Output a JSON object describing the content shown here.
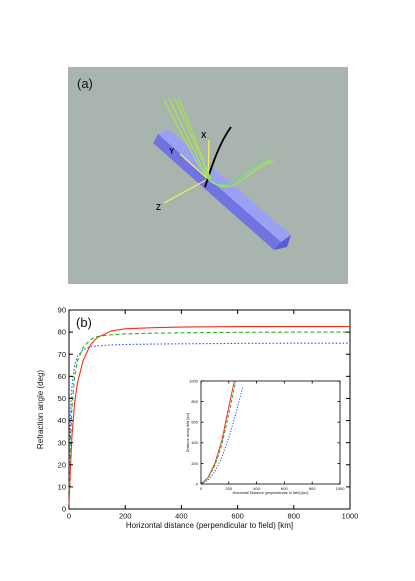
{
  "panel_a": {
    "label": "(a)",
    "axes": {
      "x": "X",
      "y": "Y",
      "z": "Z"
    },
    "colors": {
      "background": "#aab4ae",
      "bar": "#6f70e6",
      "rays": "#a8e84a",
      "ray_alt": "#6fd2a0",
      "field_line": "#000000",
      "axes": "#f4f45a"
    }
  },
  "panel_b": {
    "label": "(b)",
    "inset_label": ""
  },
  "chart_data": [
    {
      "type": "line",
      "xlabel": "Horizontal distance (perpendicular to field) [km]",
      "ylabel": "Refraction angle (deg)",
      "xlim": [
        0,
        1000
      ],
      "ylim": [
        0,
        90
      ],
      "xticks": [
        0,
        200,
        400,
        600,
        800,
        1000
      ],
      "yticks": [
        0,
        10,
        20,
        30,
        40,
        50,
        60,
        70,
        80,
        90
      ],
      "grid": false,
      "series": [
        {
          "style": "solid",
          "color": "#ff2a1a",
          "x": [
            0,
            5,
            10,
            20,
            30,
            50,
            75,
            100,
            150,
            200,
            300,
            400,
            600,
            800,
            1000
          ],
          "y": [
            2,
            18,
            32,
            48,
            57,
            67,
            74,
            77.5,
            80.5,
            81.5,
            82,
            82.3,
            82.5,
            82.5,
            82.5
          ]
        },
        {
          "style": "dashed",
          "color": "#2ab02a",
          "x": [
            0,
            5,
            10,
            20,
            30,
            50,
            75,
            100,
            150,
            200,
            300,
            400,
            600,
            800,
            1000
          ],
          "y": [
            8,
            30,
            45,
            60,
            67,
            73,
            76.5,
            78,
            78.8,
            79.2,
            79.5,
            79.7,
            79.9,
            80,
            80
          ]
        },
        {
          "style": "dotted",
          "color": "#2a4cff",
          "x": [
            0,
            5,
            10,
            20,
            30,
            50,
            75,
            100,
            150,
            200,
            300,
            400,
            600,
            800,
            1000
          ],
          "y": [
            20,
            42,
            55,
            65,
            69,
            72,
            73.3,
            73.8,
            74.2,
            74.4,
            74.6,
            74.7,
            74.9,
            75,
            75
          ]
        }
      ]
    },
    {
      "type": "line",
      "xlabel": "Horizontal Distance (perpendicular to field) [km]",
      "ylabel": "Distance along field [km]",
      "xlim": [
        0,
        1000
      ],
      "ylim": [
        0,
        1000
      ],
      "xticks": [
        0,
        200,
        400,
        600,
        800,
        1000
      ],
      "yticks": [
        0,
        200,
        400,
        600,
        800,
        1000
      ],
      "grid": false,
      "series": [
        {
          "style": "solid",
          "color": "#ff2a1a",
          "x": [
            0,
            50,
            100,
            150,
            200,
            240
          ],
          "y": [
            0,
            60,
            200,
            420,
            750,
            1000
          ]
        },
        {
          "style": "dashed",
          "color": "#2ab02a",
          "x": [
            0,
            50,
            100,
            150,
            200,
            250
          ],
          "y": [
            0,
            55,
            180,
            380,
            680,
            1000
          ]
        },
        {
          "style": "dotted",
          "color": "#2a4cff",
          "x": [
            0,
            50,
            100,
            150,
            200,
            250,
            300
          ],
          "y": [
            0,
            35,
            120,
            260,
            450,
            680,
            940
          ]
        }
      ]
    }
  ]
}
